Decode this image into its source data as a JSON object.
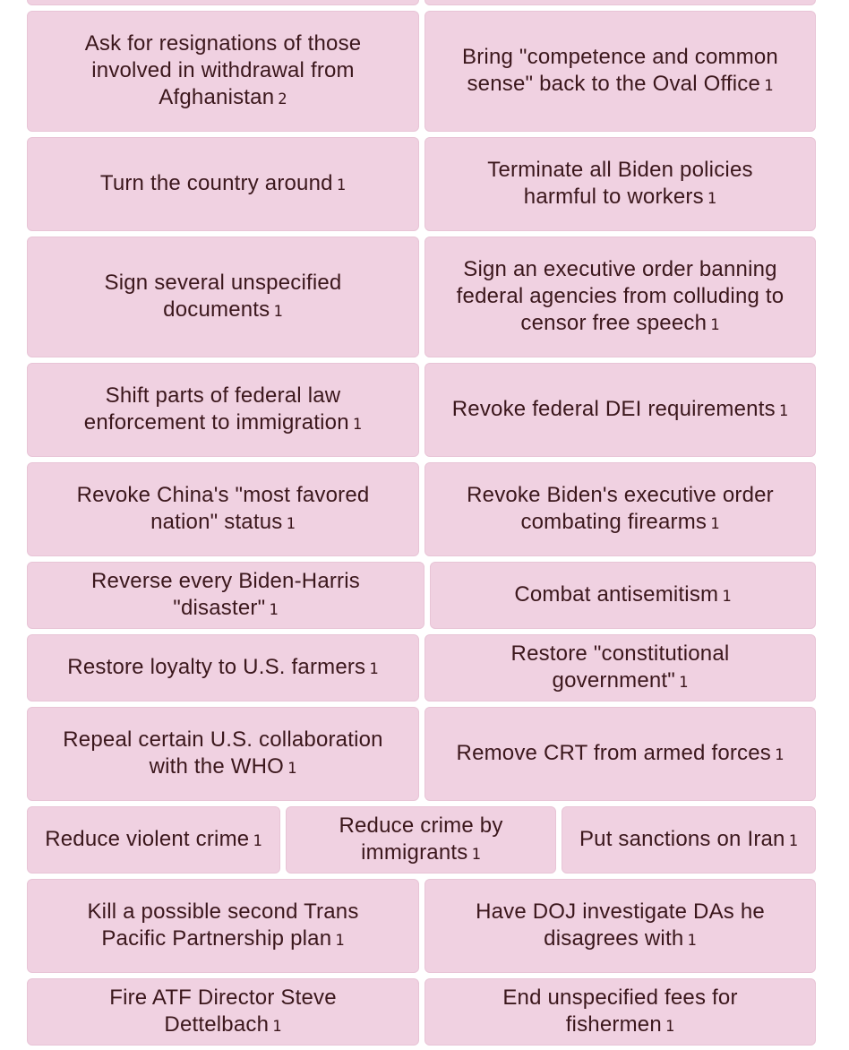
{
  "tiles": [
    {
      "label": "",
      "count": ""
    },
    {
      "label": "",
      "count": ""
    },
    {
      "label": "Ask for resignations of those involved in withdrawal from Afghanistan",
      "count": "2"
    },
    {
      "label": "Bring \"competence and common sense\" back to the Oval Office",
      "count": "1"
    },
    {
      "label": "Turn the country around",
      "count": "1"
    },
    {
      "label": "Terminate all Biden policies harmful to workers",
      "count": "1"
    },
    {
      "label": "Sign several unspecified documents",
      "count": "1"
    },
    {
      "label": "Sign an executive order banning federal agencies from colluding to censor free speech",
      "count": "1"
    },
    {
      "label": "Shift parts of federal law enforcement to immigration",
      "count": "1"
    },
    {
      "label": "Revoke federal DEI requirements",
      "count": "1"
    },
    {
      "label": "Revoke China's \"most favored nation\" status",
      "count": "1"
    },
    {
      "label": "Revoke Biden's executive order combating firearms",
      "count": "1"
    },
    {
      "label": "Reverse every Biden-Harris \"disaster\"",
      "count": "1"
    },
    {
      "label": "Combat antisemitism",
      "count": "1"
    },
    {
      "label": "Restore loyalty to U.S. farmers",
      "count": "1"
    },
    {
      "label": "Restore \"constitutional government\"",
      "count": "1"
    },
    {
      "label": "Repeal certain U.S. collaboration with the WHO",
      "count": "1"
    },
    {
      "label": "Remove CRT from armed forces",
      "count": "1"
    },
    {
      "label": "Reduce violent crime",
      "count": "1"
    },
    {
      "label": "Reduce crime by immigrants",
      "count": "1"
    },
    {
      "label": "Put sanctions on Iran",
      "count": "1"
    },
    {
      "label": "Kill a possible second Trans Pacific Partnership plan",
      "count": "1"
    },
    {
      "label": "Have DOJ investigate DAs he disagrees with",
      "count": "1"
    },
    {
      "label": "Fire ATF Director Steve Dettelbach",
      "count": "1"
    },
    {
      "label": "End unspecified fees for fishermen",
      "count": "1"
    }
  ],
  "colors": {
    "tile_bg": "#f0d1e1",
    "text": "#3b171c"
  }
}
